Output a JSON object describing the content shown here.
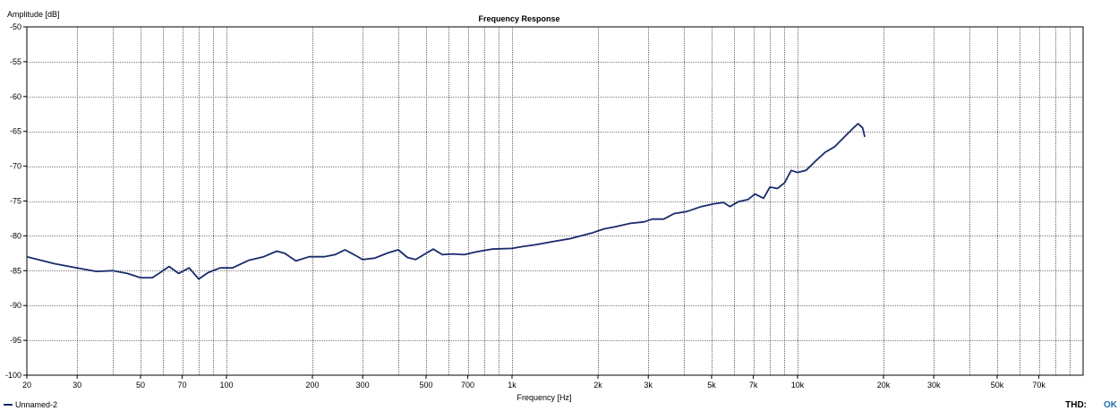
{
  "chart_data": {
    "type": "line",
    "title": "Frequency Response",
    "xlabel": "Frequency [Hz]",
    "ylabel": "Amplitude [dB]",
    "xscale": "log",
    "xlim": [
      20,
      100000
    ],
    "ylim": [
      -100,
      -50
    ],
    "grid": true,
    "legend_position": "bottom-left",
    "x_tick_labels": [
      {
        "v": 20,
        "label": "20"
      },
      {
        "v": 30,
        "label": "30"
      },
      {
        "v": 50,
        "label": "50"
      },
      {
        "v": 70,
        "label": "70"
      },
      {
        "v": 100,
        "label": "100"
      },
      {
        "v": 200,
        "label": "200"
      },
      {
        "v": 300,
        "label": "300"
      },
      {
        "v": 500,
        "label": "500"
      },
      {
        "v": 700,
        "label": "700"
      },
      {
        "v": 1000,
        "label": "1k"
      },
      {
        "v": 2000,
        "label": "2k"
      },
      {
        "v": 3000,
        "label": "3k"
      },
      {
        "v": 5000,
        "label": "5k"
      },
      {
        "v": 7000,
        "label": "7k"
      },
      {
        "v": 10000,
        "label": "10k"
      },
      {
        "v": 20000,
        "label": "20k"
      },
      {
        "v": 30000,
        "label": "30k"
      },
      {
        "v": 50000,
        "label": "50k"
      },
      {
        "v": 70000,
        "label": "70k"
      }
    ],
    "y_tick_labels": [
      {
        "v": -50,
        "label": "-50"
      },
      {
        "v": -55,
        "label": "-55"
      },
      {
        "v": -60,
        "label": "-60"
      },
      {
        "v": -65,
        "label": "-65"
      },
      {
        "v": -70,
        "label": "-70"
      },
      {
        "v": -75,
        "label": "-75"
      },
      {
        "v": -80,
        "label": "-80"
      },
      {
        "v": -85,
        "label": "-85"
      },
      {
        "v": -90,
        "label": "-90"
      },
      {
        "v": -95,
        "label": "-95"
      },
      {
        "v": -100,
        "label": "-100"
      }
    ],
    "series": [
      {
        "name": "Unnamed-2",
        "color": "#1a2a6c",
        "points": [
          [
            20,
            -83.0
          ],
          [
            25,
            -84.0
          ],
          [
            30,
            -84.6
          ],
          [
            35,
            -85.1
          ],
          [
            40,
            -85.0
          ],
          [
            45,
            -85.4
          ],
          [
            50,
            -86.0
          ],
          [
            55,
            -86.0
          ],
          [
            58,
            -85.4
          ],
          [
            63,
            -84.4
          ],
          [
            68,
            -85.4
          ],
          [
            74,
            -84.6
          ],
          [
            80,
            -86.2
          ],
          [
            86,
            -85.3
          ],
          [
            95,
            -84.6
          ],
          [
            105,
            -84.6
          ],
          [
            120,
            -83.5
          ],
          [
            135,
            -83.0
          ],
          [
            150,
            -82.2
          ],
          [
            160,
            -82.5
          ],
          [
            175,
            -83.6
          ],
          [
            195,
            -83.0
          ],
          [
            220,
            -83.0
          ],
          [
            240,
            -82.7
          ],
          [
            260,
            -82.0
          ],
          [
            280,
            -82.7
          ],
          [
            300,
            -83.4
          ],
          [
            330,
            -83.2
          ],
          [
            370,
            -82.4
          ],
          [
            400,
            -82.0
          ],
          [
            430,
            -83.1
          ],
          [
            460,
            -83.4
          ],
          [
            500,
            -82.5
          ],
          [
            530,
            -81.9
          ],
          [
            570,
            -82.7
          ],
          [
            620,
            -82.6
          ],
          [
            680,
            -82.7
          ],
          [
            750,
            -82.3
          ],
          [
            850,
            -81.9
          ],
          [
            1000,
            -81.8
          ],
          [
            1100,
            -81.5
          ],
          [
            1200,
            -81.3
          ],
          [
            1400,
            -80.8
          ],
          [
            1600,
            -80.4
          ],
          [
            1900,
            -79.6
          ],
          [
            2100,
            -79.0
          ],
          [
            2300,
            -78.7
          ],
          [
            2600,
            -78.2
          ],
          [
            2900,
            -78.0
          ],
          [
            3100,
            -77.6
          ],
          [
            3400,
            -77.6
          ],
          [
            3700,
            -76.8
          ],
          [
            4100,
            -76.5
          ],
          [
            4600,
            -75.8
          ],
          [
            5100,
            -75.4
          ],
          [
            5500,
            -75.2
          ],
          [
            5800,
            -75.8
          ],
          [
            6200,
            -75.1
          ],
          [
            6700,
            -74.8
          ],
          [
            7100,
            -74.0
          ],
          [
            7600,
            -74.6
          ],
          [
            8000,
            -73.0
          ],
          [
            8500,
            -73.2
          ],
          [
            9000,
            -72.4
          ],
          [
            9500,
            -70.6
          ],
          [
            10000,
            -70.9
          ],
          [
            10700,
            -70.6
          ],
          [
            11600,
            -69.2
          ],
          [
            12500,
            -68.0
          ],
          [
            13500,
            -67.2
          ],
          [
            14500,
            -65.9
          ],
          [
            15600,
            -64.6
          ],
          [
            16300,
            -63.9
          ],
          [
            16900,
            -64.5
          ],
          [
            17200,
            -65.8
          ]
        ]
      }
    ]
  },
  "status": {
    "thd_label": "THD:",
    "thd_value": "OK",
    "thd_color": "#1f6fb0"
  }
}
